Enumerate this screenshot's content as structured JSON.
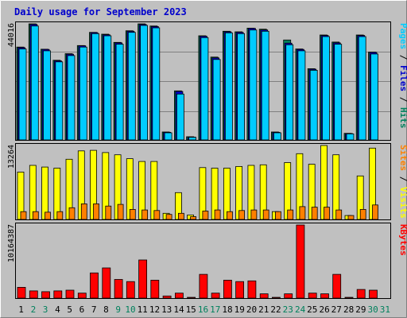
{
  "chart_data": {
    "type": "bar",
    "title": "Daily usage for September 2023",
    "days": [
      "1",
      "2",
      "3",
      "4",
      "5",
      "6",
      "7",
      "8",
      "9",
      "10",
      "11",
      "12",
      "13",
      "14",
      "15",
      "16",
      "17",
      "18",
      "19",
      "20",
      "21",
      "22",
      "23",
      "24",
      "25",
      "26",
      "27",
      "28",
      "29",
      "30",
      "31"
    ],
    "weekend_days": [
      "2",
      "3",
      "9",
      "10",
      "16",
      "17",
      "23",
      "24",
      "30",
      "31"
    ],
    "colors": {
      "hits": "#00805c",
      "files": "#0000cc",
      "pages": "#00ccff",
      "visits": "#ffff00",
      "sites": "#ff8000",
      "kbytes": "#ff0000",
      "weekday_label": "#000000",
      "weekend_label": "#00805c"
    },
    "panels": [
      {
        "id": "hits-files-pages",
        "ymax_label": "44016",
        "ymax": 44016,
        "legend_parts": [
          {
            "text": "Pages",
            "color": "#00ccff"
          },
          {
            "text": " / ",
            "color": "#000000"
          },
          {
            "text": "Files",
            "color": "#0000cc"
          },
          {
            "text": " / ",
            "color": "#000000"
          },
          {
            "text": "Hits",
            "color": "#00805c"
          }
        ],
        "series": [
          {
            "name": "Hits",
            "color": "#00805c",
            "values": [
              35200,
              44016,
              34400,
              30200,
              32700,
              35800,
              40800,
              40100,
              37000,
              41400,
              44016,
              43200,
              3000,
              18600,
              1200,
              39500,
              31400,
              41200,
              41000,
              42400,
              42000,
              3000,
              37900,
              34500,
              27000,
              39800,
              37100,
              2500,
              39800,
              33300,
              0
            ]
          },
          {
            "name": "Files",
            "color": "#0000cc",
            "values": [
              35000,
              43800,
              34300,
              30000,
              32500,
              35700,
              40700,
              39900,
              36800,
              41200,
              43800,
              43000,
              2900,
              18400,
              1100,
              39300,
              31100,
              41000,
              40800,
              42300,
              41700,
              2900,
              36700,
              34300,
              26800,
              39600,
              36800,
              2400,
              39600,
              33200,
              0
            ]
          },
          {
            "name": "Pages",
            "color": "#00ccff",
            "values": [
              34500,
              43200,
              33800,
              29600,
              32000,
              35200,
              40300,
              39500,
              36300,
              40800,
              43400,
              42500,
              2700,
              17400,
              1000,
              38800,
              30500,
              40600,
              40300,
              41700,
              41200,
              2700,
              36100,
              33800,
              26400,
              39200,
              36300,
              2300,
              39200,
              32600,
              0
            ]
          }
        ]
      },
      {
        "id": "visits-sites",
        "ymax_label": "13264",
        "ymax": 13264,
        "legend_parts": [
          {
            "text": "Sites",
            "color": "#ff8000"
          },
          {
            "text": " / ",
            "color": "#000000"
          },
          {
            "text": "Visits",
            "color": "#ffff00"
          }
        ],
        "series": [
          {
            "name": "Visits",
            "color": "#ffff00",
            "values": [
              8500,
              9700,
              9400,
              9200,
              10800,
              12300,
              12400,
              12000,
              11600,
              10900,
              10400,
              10400,
              1100,
              4800,
              800,
              9300,
              9200,
              9200,
              9500,
              9700,
              9800,
              1400,
              10200,
              11800,
              9900,
              13264,
              11600,
              700,
              7800,
              12800,
              0
            ]
          },
          {
            "name": "Sites",
            "color": "#ff8000",
            "values": [
              1400,
              1400,
              1300,
              1400,
              2100,
              2800,
              2800,
              2400,
              2700,
              1800,
              1700,
              1600,
              900,
              1100,
              500,
              1500,
              1700,
              1400,
              1600,
              1700,
              1700,
              1400,
              1700,
              2300,
              2200,
              2200,
              1700,
              700,
              1800,
              2600,
              0
            ]
          }
        ]
      },
      {
        "id": "kbytes",
        "ymax_label": "10164387",
        "ymax": 10164387,
        "legend_parts": [
          {
            "text": "KBytes",
            "color": "#ff0000"
          }
        ],
        "series": [
          {
            "name": "KBytes",
            "color": "#ff0000",
            "values": [
              1500000,
              1000000,
              900000,
              1000000,
              1100000,
              700000,
              3500000,
              4200000,
              2600000,
              2300000,
              5300000,
              2500000,
              300000,
              700000,
              100000,
              3300000,
              700000,
              2500000,
              2300000,
              2400000,
              600000,
              100000,
              600000,
              10164387,
              700000,
              600000,
              3300000,
              100000,
              1200000,
              1100000,
              0
            ]
          }
        ]
      }
    ]
  }
}
